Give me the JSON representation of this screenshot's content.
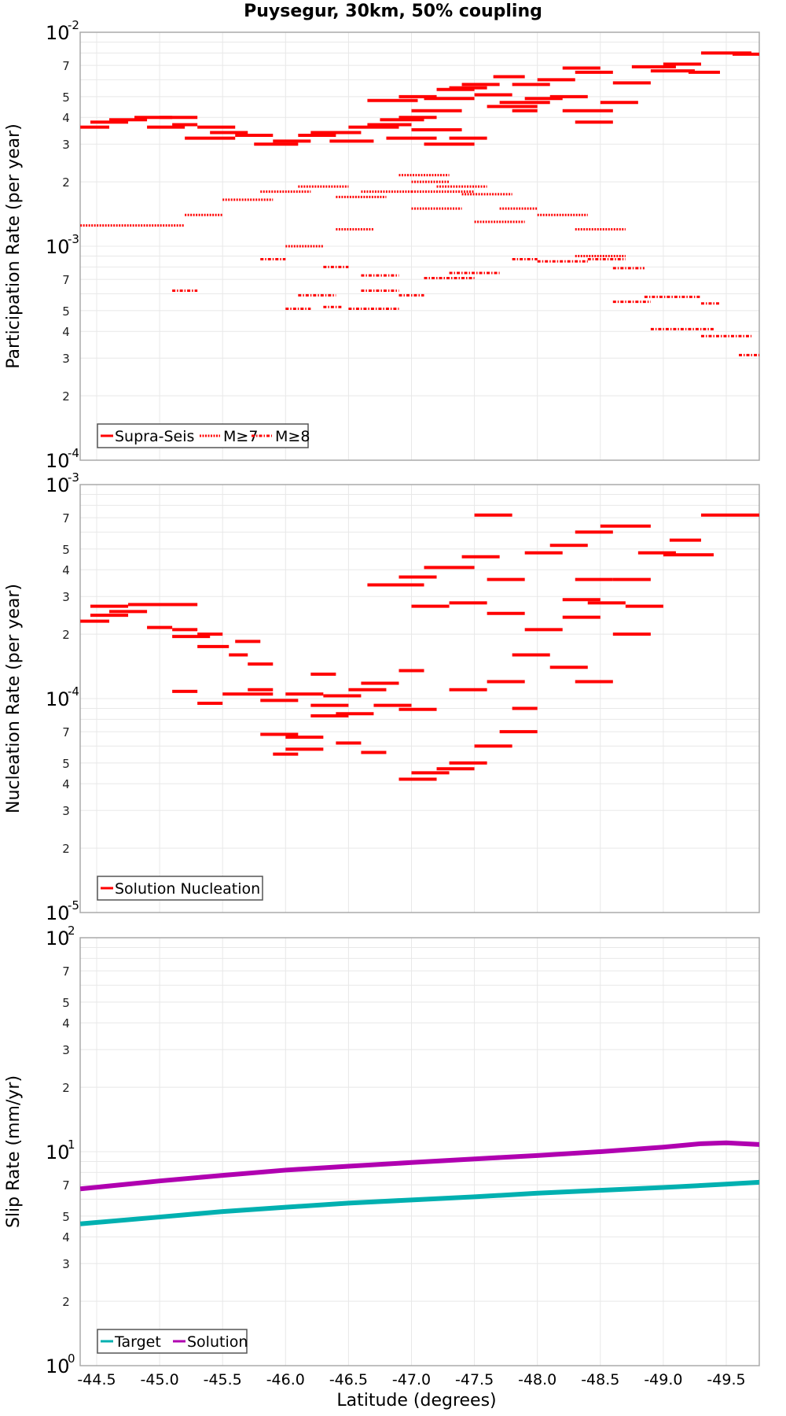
{
  "title": "Puysegur, 30km, 50% coupling",
  "x_axis_label": "Latitude (degrees)",
  "x_ticks": [
    "-44.5",
    "-45.0",
    "-45.5",
    "-46.0",
    "-46.5",
    "-47.0",
    "-47.5",
    "-48.0",
    "-48.5",
    "-49.0",
    "-49.5"
  ],
  "colors": {
    "red": "#ff0000",
    "target": "#00b0b0",
    "solution": "#b000b0",
    "grid": "#e8e8e8",
    "axis": "#aaaaaa",
    "legend_border": "#555555"
  },
  "panels": [
    {
      "ylabel": "Participation Rate (per year)",
      "legend": [
        "Supra-Seis",
        "M≥7",
        "M≥8"
      ],
      "top_label": "10",
      "top_exp": "-2",
      "mid_label": "10",
      "mid_exp": "-3",
      "bottom_label": "10",
      "bottom_exp": "-4"
    },
    {
      "ylabel": "Nucleation Rate (per year)",
      "legend": [
        "Solution Nucleation"
      ],
      "top_label": "10",
      "top_exp": "-3",
      "mid_label": "10",
      "mid_exp": "-4",
      "bottom_label": "10",
      "bottom_exp": "-5"
    },
    {
      "ylabel": "Slip Rate (mm/yr)",
      "legend": [
        "Target",
        "Solution"
      ],
      "top_label": "10",
      "top_exp": "2",
      "mid_label": "10",
      "mid_exp": "1",
      "bottom_label": "10",
      "bottom_exp": "0"
    }
  ],
  "chart_data": [
    {
      "type": "line",
      "title": "Puysegur, 30km, 50% coupling",
      "xlabel": "Latitude (degrees)",
      "ylabel": "Participation Rate (per year)",
      "yscale": "log",
      "ylim": [
        0.0001,
        0.01
      ],
      "xlim": [
        -44.37,
        -49.77
      ],
      "grid": true,
      "legend_position": "lower left",
      "series": [
        {
          "name": "Supra-Seis",
          "style": "solid",
          "segments": [
            [
              -44.37,
              -44.6,
              0.0036
            ],
            [
              -44.45,
              -44.75,
              0.0038
            ],
            [
              -44.6,
              -44.9,
              0.0039
            ],
            [
              -44.8,
              -45.1,
              0.004
            ],
            [
              -45.1,
              -45.3,
              0.0037
            ],
            [
              -44.9,
              -45.2,
              0.0036
            ],
            [
              -45.0,
              -45.3,
              0.004
            ],
            [
              -45.3,
              -45.6,
              0.0036
            ],
            [
              -45.2,
              -45.6,
              0.0032
            ],
            [
              -45.4,
              -45.7,
              0.0034
            ],
            [
              -45.6,
              -45.9,
              0.0033
            ],
            [
              -45.75,
              -46.1,
              0.003
            ],
            [
              -45.9,
              -46.2,
              0.0031
            ],
            [
              -46.1,
              -46.4,
              0.0033
            ],
            [
              -46.2,
              -46.6,
              0.0034
            ],
            [
              -46.35,
              -46.7,
              0.0031
            ],
            [
              -46.5,
              -46.9,
              0.0036
            ],
            [
              -46.65,
              -47.0,
              0.0037
            ],
            [
              -46.75,
              -47.1,
              0.0039
            ],
            [
              -46.9,
              -47.2,
              0.004
            ],
            [
              -47.0,
              -47.4,
              0.0043
            ],
            [
              -46.8,
              -47.2,
              0.0032
            ],
            [
              -47.0,
              -47.4,
              0.0035
            ],
            [
              -47.1,
              -47.5,
              0.003
            ],
            [
              -47.3,
              -47.6,
              0.0032
            ],
            [
              -46.65,
              -47.05,
              0.0048
            ],
            [
              -46.9,
              -47.2,
              0.005
            ],
            [
              -47.1,
              -47.5,
              0.0049
            ],
            [
              -47.3,
              -47.6,
              0.0055
            ],
            [
              -47.5,
              -47.8,
              0.0051
            ],
            [
              -47.6,
              -48.0,
              0.0045
            ],
            [
              -47.7,
              -48.1,
              0.0047
            ],
            [
              -47.9,
              -48.2,
              0.0049
            ],
            [
              -48.1,
              -48.4,
              0.005
            ],
            [
              -48.2,
              -48.6,
              0.0043
            ],
            [
              -48.3,
              -48.6,
              0.0038
            ],
            [
              -48.5,
              -48.8,
              0.0047
            ],
            [
              -47.4,
              -47.7,
              0.0057
            ],
            [
              -47.65,
              -47.9,
              0.0062
            ],
            [
              -47.8,
              -48.1,
              0.0057
            ],
            [
              -48.0,
              -48.3,
              0.006
            ],
            [
              -48.3,
              -48.6,
              0.0065
            ],
            [
              -48.6,
              -48.9,
              0.0058
            ],
            [
              -48.75,
              -49.1,
              0.0069
            ],
            [
              -49.0,
              -49.3,
              0.0071
            ],
            [
              -49.2,
              -49.45,
              0.0065
            ],
            [
              -49.3,
              -49.7,
              0.008
            ],
            [
              -49.55,
              -49.77,
              0.0079
            ],
            [
              -48.2,
              -48.5,
              0.0068
            ],
            [
              -48.9,
              -49.25,
              0.0066
            ],
            [
              -47.2,
              -47.5,
              0.0054
            ],
            [
              -47.8,
              -48.0,
              0.0043
            ]
          ]
        },
        {
          "name": "M≥7",
          "style": "dotted",
          "segments": [
            [
              -44.37,
              -45.2,
              0.00125
            ],
            [
              -45.2,
              -45.5,
              0.0014
            ],
            [
              -45.5,
              -45.9,
              0.00165
            ],
            [
              -45.8,
              -46.2,
              0.0018
            ],
            [
              -46.1,
              -46.5,
              0.0019
            ],
            [
              -46.4,
              -46.8,
              0.0017
            ],
            [
              -46.6,
              -47.0,
              0.0018
            ],
            [
              -47.0,
              -47.3,
              0.002
            ],
            [
              -47.2,
              -47.6,
              0.0019
            ],
            [
              -47.4,
              -47.8,
              0.00175
            ],
            [
              -47.7,
              -48.0,
              0.0015
            ],
            [
              -48.0,
              -48.4,
              0.0014
            ],
            [
              -48.3,
              -48.7,
              0.0012
            ],
            [
              -47.5,
              -47.9,
              0.0013
            ],
            [
              -47.0,
              -47.5,
              0.0018
            ],
            [
              -46.9,
              -47.3,
              0.00215
            ],
            [
              -46.4,
              -46.7,
              0.0012
            ],
            [
              -46.0,
              -46.3,
              0.001
            ],
            [
              -47.0,
              -47.4,
              0.0015
            ],
            [
              -48.3,
              -48.7,
              0.0009
            ]
          ]
        },
        {
          "name": "M≥8",
          "style": "dash-dot",
          "segments": [
            [
              -46.0,
              -46.2,
              0.00051
            ],
            [
              -46.3,
              -46.45,
              0.00052
            ],
            [
              -46.5,
              -46.9,
              0.00051
            ],
            [
              -46.1,
              -46.4,
              0.00059
            ],
            [
              -46.6,
              -46.9,
              0.00062
            ],
            [
              -46.3,
              -46.5,
              0.0008
            ],
            [
              -46.6,
              -46.9,
              0.00073
            ],
            [
              -46.9,
              -47.1,
              0.00059
            ],
            [
              -47.1,
              -47.5,
              0.00071
            ],
            [
              -47.3,
              -47.7,
              0.00075
            ],
            [
              -47.8,
              -48.0,
              0.00087
            ],
            [
              -48.0,
              -48.4,
              0.00085
            ],
            [
              -48.4,
              -48.7,
              0.00087
            ],
            [
              -48.6,
              -48.85,
              0.00079
            ],
            [
              -48.6,
              -48.9,
              0.00055
            ],
            [
              -48.85,
              -49.3,
              0.00058
            ],
            [
              -49.3,
              -49.45,
              0.00054
            ],
            [
              -48.9,
              -49.4,
              0.00041
            ],
            [
              -49.3,
              -49.7,
              0.00038
            ],
            [
              -49.6,
              -49.77,
              0.00031
            ],
            [
              -45.1,
              -45.3,
              0.00062
            ],
            [
              -45.8,
              -46.0,
              0.00087
            ]
          ]
        }
      ]
    },
    {
      "type": "line",
      "ylabel": "Nucleation Rate (per year)",
      "yscale": "log",
      "ylim": [
        1e-05,
        0.001
      ],
      "xlim": [
        -44.37,
        -49.77
      ],
      "grid": true,
      "legend_position": "lower left",
      "series": [
        {
          "name": "Solution Nucleation",
          "style": "solid",
          "segments": [
            [
              -44.37,
              -44.6,
              0.00023
            ],
            [
              -44.45,
              -44.75,
              0.000245
            ],
            [
              -44.6,
              -44.9,
              0.000255
            ],
            [
              -44.45,
              -44.75,
              0.00027
            ],
            [
              -44.75,
              -45.05,
              0.000275
            ],
            [
              -45.0,
              -45.3,
              0.000275
            ],
            [
              -44.9,
              -45.1,
              0.000215
            ],
            [
              -45.1,
              -45.4,
              0.000195
            ],
            [
              -45.1,
              -45.3,
              0.00021
            ],
            [
              -45.3,
              -45.5,
              0.0002
            ],
            [
              -45.3,
              -45.55,
              0.000175
            ],
            [
              -45.6,
              -45.8,
              0.000185
            ],
            [
              -45.55,
              -45.7,
              0.00016
            ],
            [
              -45.7,
              -45.9,
              0.000145
            ],
            [
              -45.1,
              -45.3,
              0.000108
            ],
            [
              -45.3,
              -45.5,
              9.5e-05
            ],
            [
              -45.5,
              -45.9,
              0.000105
            ],
            [
              -45.7,
              -45.9,
              0.00011
            ],
            [
              -45.8,
              -46.1,
              9.8e-05
            ],
            [
              -46.0,
              -46.3,
              0.000105
            ],
            [
              -46.2,
              -46.5,
              9.3e-05
            ],
            [
              -46.3,
              -46.6,
              0.000103
            ],
            [
              -46.5,
              -46.8,
              0.00011
            ],
            [
              -46.6,
              -46.9,
              0.000118
            ],
            [
              -46.9,
              -47.1,
              0.000135
            ],
            [
              -46.2,
              -46.5,
              8.3e-05
            ],
            [
              -46.4,
              -46.7,
              8.5e-05
            ],
            [
              -46.7,
              -47.0,
              9.3e-05
            ],
            [
              -45.8,
              -46.1,
              6.8e-05
            ],
            [
              -46.0,
              -46.3,
              6.6e-05
            ],
            [
              -45.9,
              -46.1,
              5.5e-05
            ],
            [
              -46.0,
              -46.3,
              5.8e-05
            ],
            [
              -46.4,
              -46.6,
              6.2e-05
            ],
            [
              -46.6,
              -46.8,
              5.6e-05
            ],
            [
              -46.2,
              -46.4,
              0.00013
            ],
            [
              -46.9,
              -47.2,
              8.9e-05
            ],
            [
              -46.9,
              -47.2,
              4.2e-05
            ],
            [
              -47.0,
              -47.3,
              4.5e-05
            ],
            [
              -47.2,
              -47.5,
              4.7e-05
            ],
            [
              -47.3,
              -47.6,
              5e-05
            ],
            [
              -47.5,
              -47.8,
              6e-05
            ],
            [
              -47.7,
              -48.0,
              7e-05
            ],
            [
              -46.65,
              -47.1,
              0.00034
            ],
            [
              -46.9,
              -47.2,
              0.00037
            ],
            [
              -47.1,
              -47.5,
              0.00041
            ],
            [
              -47.4,
              -47.7,
              0.00046
            ],
            [
              -47.6,
              -47.9,
              0.00036
            ],
            [
              -47.9,
              -48.2,
              0.00048
            ],
            [
              -48.1,
              -48.4,
              0.00052
            ],
            [
              -48.3,
              -48.6,
              0.0006
            ],
            [
              -48.5,
              -48.9,
              0.00064
            ],
            [
              -48.8,
              -49.1,
              0.00048
            ],
            [
              -49.0,
              -49.4,
              0.00047
            ],
            [
              -49.3,
              -49.77,
              0.00072
            ],
            [
              -47.0,
              -47.3,
              0.00027
            ],
            [
              -47.3,
              -47.6,
              0.00028
            ],
            [
              -47.6,
              -47.9,
              0.00025
            ],
            [
              -47.9,
              -48.2,
              0.00021
            ],
            [
              -48.2,
              -48.5,
              0.00024
            ],
            [
              -48.4,
              -48.7,
              0.00028
            ],
            [
              -48.7,
              -49.0,
              0.00027
            ],
            [
              -47.8,
              -48.1,
              0.00016
            ],
            [
              -48.1,
              -48.4,
              0.00014
            ],
            [
              -48.3,
              -48.6,
              0.00012
            ],
            [
              -48.6,
              -48.9,
              0.0002
            ],
            [
              -48.6,
              -48.9,
              0.00036
            ],
            [
              -48.3,
              -48.6,
              0.00036
            ],
            [
              -47.6,
              -47.9,
              0.00012
            ],
            [
              -47.3,
              -47.6,
              0.00011
            ],
            [
              -47.8,
              -48.0,
              9e-05
            ],
            [
              -47.5,
              -47.8,
              0.00072
            ],
            [
              -48.2,
              -48.5,
              0.00029
            ],
            [
              -49.05,
              -49.3,
              0.00055
            ]
          ]
        }
      ]
    },
    {
      "type": "line",
      "ylabel": "Slip Rate (mm/yr)",
      "yscale": "log",
      "ylim": [
        1,
        100
      ],
      "xlim": [
        -44.37,
        -49.77
      ],
      "grid": true,
      "legend_position": "lower left",
      "series": [
        {
          "name": "Target",
          "style": "solid",
          "x": [
            -44.37,
            -45.0,
            -45.5,
            -46.0,
            -46.5,
            -47.0,
            -47.5,
            -48.0,
            -48.5,
            -49.0,
            -49.5,
            -49.77
          ],
          "values": [
            4.6,
            4.95,
            5.25,
            5.5,
            5.75,
            5.95,
            6.15,
            6.4,
            6.6,
            6.8,
            7.05,
            7.2
          ]
        },
        {
          "name": "Solution",
          "style": "solid",
          "x": [
            -44.37,
            -45.0,
            -45.5,
            -46.0,
            -46.5,
            -47.0,
            -47.5,
            -48.0,
            -48.5,
            -49.0,
            -49.3,
            -49.5,
            -49.77
          ],
          "values": [
            6.7,
            7.3,
            7.75,
            8.2,
            8.55,
            8.9,
            9.25,
            9.6,
            10.0,
            10.5,
            10.9,
            11.0,
            10.8
          ]
        }
      ]
    }
  ]
}
